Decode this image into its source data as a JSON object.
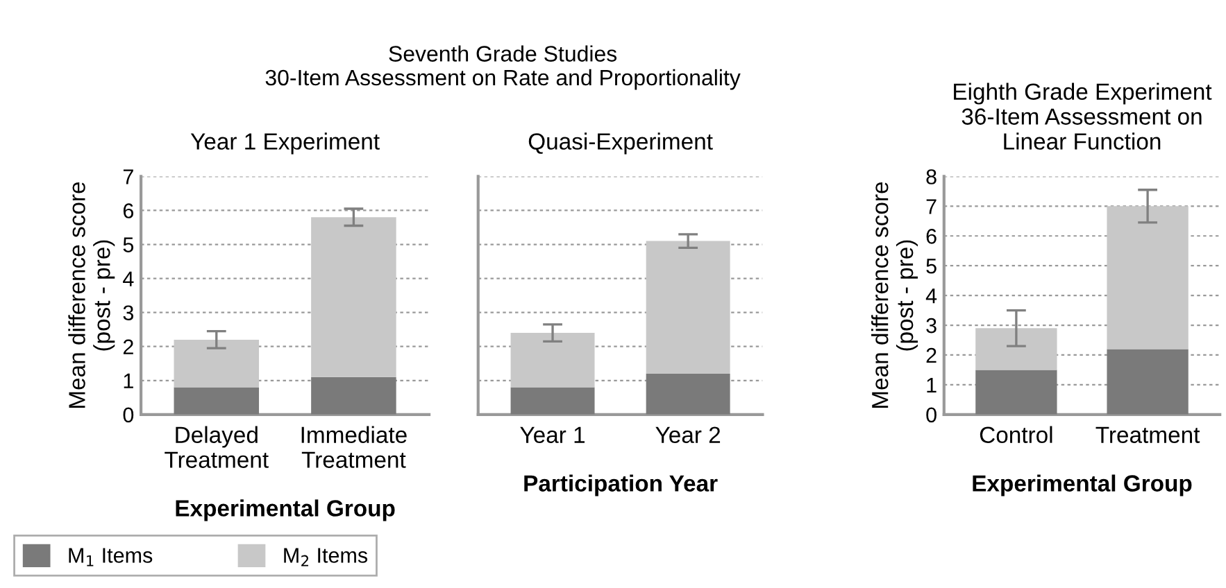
{
  "chart_data": [
    {
      "type": "bar",
      "title": "Year 1 Experiment",
      "annotations": [
        "Seventh Grade Studies\n30-Item Assessment on Rate and Proportionality"
      ],
      "xlabel": "Experimental Group",
      "ylabel": "Mean difference score\n(post - pre)",
      "categories": [
        "Delayed\nTreatment",
        "Immediate\nTreatment"
      ],
      "stacked": true,
      "series": [
        {
          "name": "M$_{1}$ Items",
          "color": "#7a7a7a",
          "values": [
            0.8,
            1.1
          ]
        },
        {
          "name": "M$_{2}$ Items",
          "color": "#c8c8c8",
          "values": [
            1.4,
            4.7
          ],
          "errors": [
            0.25,
            0.25
          ]
        }
      ],
      "ylim": [
        0,
        7
      ],
      "yticks": [
        0,
        1,
        2,
        3,
        4,
        5,
        6,
        7
      ],
      "grid": "y",
      "legend": "bottom left"
    },
    {
      "type": "bar",
      "title": "Quasi-Experiment",
      "xlabel": "Participation Year",
      "categories": [
        "Year 1",
        "Year 2"
      ],
      "stacked": true,
      "series": [
        {
          "color": "#7a7a7a",
          "values": [
            0.8,
            1.2
          ]
        },
        {
          "color": "#c8c8c8",
          "values": [
            1.6,
            3.9
          ],
          "errors": [
            0.25,
            0.2
          ]
        }
      ],
      "ylim": [
        0,
        7
      ],
      "yticks": [
        0,
        1,
        2,
        3,
        4,
        5,
        6,
        7
      ],
      "grid": "y",
      "tick_labels": "x"
    },
    {
      "type": "bar",
      "title": "Eighth Grade Experiment\n36-Item Assessment on\nLinear Function",
      "xlabel": "Experimental Group",
      "ylabel": "Mean difference score\n(post - pre)",
      "categories": [
        "Control",
        "Treatment"
      ],
      "stacked": true,
      "series": [
        {
          "color": "#7a7a7a",
          "values": [
            1.5,
            2.2
          ]
        },
        {
          "color": "#c8c8c8",
          "values": [
            1.4,
            4.8
          ],
          "errors": [
            0.6,
            0.55
          ]
        }
      ],
      "ylim": [
        0,
        8
      ],
      "yticks": [
        0,
        1,
        2,
        3,
        4,
        5,
        6,
        7,
        8
      ],
      "grid": "y"
    }
  ]
}
